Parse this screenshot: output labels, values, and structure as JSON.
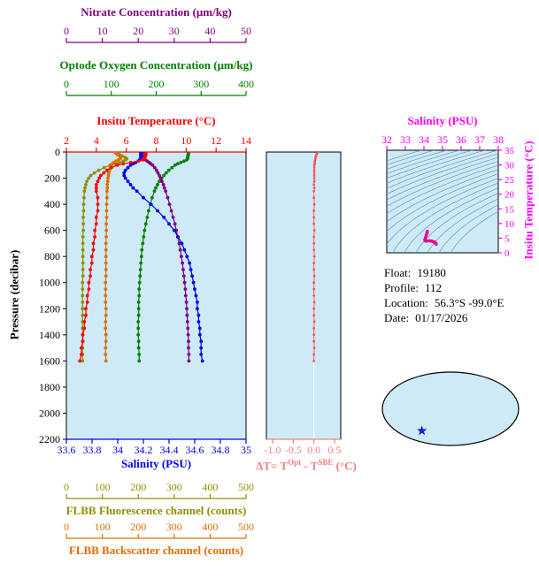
{
  "colors": {
    "plot_bg": "#CDEAF6"
  },
  "axes": {
    "nitrate": {
      "title": "Nitrate Concentration (μm/kg)",
      "color": "#800080",
      "lim": [
        0,
        50
      ],
      "ticks": [
        0,
        10,
        20,
        30,
        40,
        50
      ],
      "tick_labels": [
        "0",
        "10",
        "20",
        "30",
        "40",
        "50"
      ]
    },
    "oxygen": {
      "title": "Optode Oxygen Concentration (μm/kg)",
      "color": "#008000",
      "lim": [
        0,
        400
      ],
      "ticks": [
        0,
        100,
        200,
        300,
        400
      ],
      "tick_labels": [
        "0",
        "100",
        "200",
        "300",
        "400"
      ]
    },
    "temperature": {
      "title": "Insitu Temperature (°C)",
      "color": "#FF0000",
      "lim": [
        2,
        14
      ],
      "ticks": [
        2,
        4,
        6,
        8,
        10,
        12,
        14
      ],
      "tick_labels": [
        "2",
        "4",
        "6",
        "8",
        "10",
        "12",
        "14"
      ]
    },
    "pressure": {
      "title": "Pressure (decibar)",
      "color": "#000000",
      "lim": [
        0,
        2200
      ],
      "ticks": [
        0,
        200,
        400,
        600,
        800,
        1000,
        1200,
        1400,
        1600,
        1800,
        2000,
        2200
      ],
      "tick_labels": [
        "0",
        "200",
        "400",
        "600",
        "800",
        "1000",
        "1200",
        "1400",
        "1600",
        "1800",
        "2000",
        "2200"
      ]
    },
    "salinity": {
      "title": "Salinity (PSU)",
      "color": "#0000EE",
      "lim": [
        33.6,
        35.0
      ],
      "ticks": [
        33.6,
        33.8,
        34,
        34.2,
        34.4,
        34.6,
        34.8,
        35
      ],
      "tick_labels": [
        "33.6",
        "33.8",
        "34",
        "34.2",
        "34.4",
        "34.6",
        "34.8",
        "35"
      ]
    },
    "fluorescence": {
      "title": "FLBB Fluorescence channel (counts)",
      "color": "#8F8F00",
      "lim": [
        0,
        500
      ],
      "ticks": [
        0,
        100,
        200,
        300,
        400,
        500
      ],
      "tick_labels": [
        "0",
        "100",
        "200",
        "300",
        "400",
        "500"
      ]
    },
    "backscatter": {
      "title": "FLBB Backscatter channel (counts)",
      "color": "#E06D00",
      "lim": [
        0,
        500
      ],
      "ticks": [
        0,
        100,
        200,
        300,
        400,
        500
      ],
      "tick_labels": [
        "0",
        "100",
        "200",
        "300",
        "400",
        "500"
      ]
    },
    "delta_t": {
      "t1": "ΔT= T",
      "sup1": "Opt",
      "t2": " - T",
      "sup2": "SBE",
      "t3": " (°C)",
      "color": "#F08080",
      "curve_color": "#FF5050",
      "lim": [
        -1.15,
        0.65
      ],
      "ticks": [
        -1,
        -0.5,
        0,
        0.5
      ],
      "tick_labels": [
        "-1.0",
        "-0.5",
        "0.0",
        "0.5"
      ]
    }
  },
  "ts_diagram": {
    "title": "Salinity (PSU)",
    "right_title": "Insitu Temperature (°C)",
    "color": "#FF00FF",
    "curve_color": "#E8008C",
    "contour_color": "#6E93B5",
    "s_lim": [
      32,
      38
    ],
    "s_ticks": [
      32,
      33,
      34,
      35,
      36,
      37,
      38
    ],
    "s_tick_labels": [
      "32",
      "33",
      "34",
      "35",
      "36",
      "37",
      "38"
    ],
    "t_lim": [
      0,
      35
    ],
    "t_ticks": [
      0,
      5,
      10,
      15,
      20,
      25,
      30,
      35
    ],
    "t_tick_labels": [
      "0",
      "5",
      "10",
      "15",
      "20",
      "25",
      "30",
      "35"
    ],
    "sigma_min": 19,
    "sigma_max": 28.5,
    "sigma_step": 0.5
  },
  "info": {
    "rows": [
      {
        "label": "Float:",
        "value": "19180"
      },
      {
        "label": "Profile:",
        "value": "112"
      },
      {
        "label": "Location:",
        "value": "56.3°S -99.0°E"
      },
      {
        "label": "Date:",
        "value": "01/17/2026"
      }
    ]
  },
  "map": {
    "ocean": "#CDEAF6",
    "land": "#F4B6C2",
    "coast": "#555555",
    "outline": "#000000",
    "star_color": "#2020CC",
    "star_fx": 0.29,
    "star_fy": 0.8
  },
  "chart_data": {
    "type": "line",
    "description": "Ocean float profile plots: property vs pressure, plus Opt-SBE temperature difference panel and T-S diagram",
    "ylabel": "Pressure (decibar)",
    "ylim": [
      0,
      2200
    ],
    "pressure_dbar": [
      0,
      10,
      20,
      30,
      40,
      50,
      60,
      70,
      80,
      90,
      100,
      120,
      140,
      160,
      180,
      200,
      225,
      250,
      275,
      300,
      350,
      400,
      450,
      500,
      550,
      600,
      650,
      700,
      750,
      800,
      850,
      900,
      950,
      1000,
      1050,
      1100,
      1150,
      1200,
      1250,
      1300,
      1350,
      1400,
      1450,
      1500,
      1550,
      1600
    ],
    "series": [
      {
        "name": "Insitu Temperature",
        "units": "°C",
        "axis": "temperature",
        "color": "#FF0000",
        "values": [
          7.3,
          7.3,
          7.3,
          7.3,
          7.2,
          7.2,
          7.1,
          6.8,
          6.3,
          5.8,
          5.4,
          5.0,
          4.7,
          4.5,
          4.3,
          4.2,
          4.1,
          4.0,
          4.0,
          4.0,
          4.1,
          4.1,
          4.1,
          4.0,
          4.0,
          3.9,
          3.9,
          3.8,
          3.8,
          3.7,
          3.7,
          3.6,
          3.6,
          3.5,
          3.5,
          3.4,
          3.4,
          3.3,
          3.3,
          3.2,
          3.2,
          3.1,
          3.1,
          3.0,
          3.0,
          2.9
        ]
      },
      {
        "name": "Salinity",
        "units": "PSU",
        "axis": "salinity",
        "color": "#0000EE",
        "values": [
          34.18,
          34.18,
          34.18,
          34.18,
          34.18,
          34.18,
          34.17,
          34.16,
          34.14,
          34.12,
          34.1,
          34.08,
          34.06,
          34.05,
          34.05,
          34.06,
          34.08,
          34.1,
          34.12,
          34.15,
          34.2,
          34.26,
          34.31,
          34.36,
          34.4,
          34.44,
          34.47,
          34.5,
          34.52,
          34.54,
          34.56,
          34.57,
          34.58,
          34.59,
          34.6,
          34.61,
          34.62,
          34.62,
          34.63,
          34.63,
          34.64,
          34.64,
          34.65,
          34.65,
          34.65,
          34.66
        ]
      },
      {
        "name": "Optode Oxygen Concentration",
        "units": "μm/kg",
        "axis": "oxygen",
        "color": "#008000",
        "values": [
          272,
          272,
          271,
          271,
          270,
          270,
          268,
          262,
          255,
          248,
          242,
          235,
          228,
          222,
          217,
          212,
          207,
          203,
          199,
          196,
          191,
          187,
          183,
          180,
          177,
          174,
          172,
          170,
          168,
          167,
          166,
          165,
          164,
          163,
          162,
          162,
          161,
          161,
          161,
          160,
          160,
          160,
          161,
          161,
          162,
          162
        ]
      },
      {
        "name": "Nitrate Concentration",
        "units": "μm/kg",
        "axis": "nitrate",
        "color": "#800080",
        "values": [
          21.5,
          21.5,
          21.6,
          21.6,
          21.7,
          21.8,
          22.0,
          22.5,
          23.0,
          23.5,
          24.0,
          24.6,
          25.1,
          25.5,
          25.9,
          26.2,
          26.6,
          27.0,
          27.3,
          27.6,
          28.2,
          28.7,
          29.2,
          29.7,
          30.2,
          30.6,
          31.0,
          31.4,
          31.7,
          32.0,
          32.3,
          32.5,
          32.7,
          32.9,
          33.1,
          33.2,
          33.4,
          33.5,
          33.6,
          33.7,
          33.8,
          33.9,
          34.0,
          34.0,
          34.1,
          34.1
        ]
      },
      {
        "name": "FLBB Fluorescence channel",
        "units": "counts",
        "axis": "fluorescence",
        "color": "#8F8F00",
        "values": [
          138,
          142,
          148,
          155,
          163,
          168,
          165,
          158,
          148,
          135,
          122,
          105,
          90,
          78,
          68,
          62,
          57,
          54,
          52,
          50,
          49,
          48,
          48,
          47,
          47,
          47,
          46,
          46,
          46,
          46,
          46,
          46,
          46,
          45,
          45,
          45,
          45,
          45,
          45,
          45,
          45,
          45,
          45,
          45,
          45,
          45
        ]
      },
      {
        "name": "FLBB Backscatter channel",
        "units": "counts",
        "axis": "backscatter",
        "color": "#E06D00",
        "values": [
          135,
          138,
          142,
          148,
          152,
          150,
          145,
          138,
          132,
          128,
          125,
          122,
          120,
          118,
          117,
          116,
          115,
          114,
          114,
          113,
          113,
          112,
          112,
          112,
          111,
          111,
          111,
          110,
          110,
          110,
          110,
          110,
          110,
          109,
          109,
          109,
          109,
          110,
          110,
          109,
          109,
          110,
          110,
          109,
          109,
          110
        ]
      },
      {
        "name": "ΔT= TOpt - TSBE",
        "units": "°C",
        "axis": "delta_t",
        "color": "#FF5050",
        "values": [
          0.1,
          0.08,
          0.06,
          0.05,
          0.04,
          0.03,
          0.03,
          0.02,
          0.02,
          0.02,
          0.01,
          0.01,
          0.01,
          0.01,
          0.01,
          0.01,
          0.01,
          0.0,
          0.01,
          0.0,
          0.0,
          0.01,
          0.0,
          0.0,
          0.0,
          0.01,
          0.0,
          0.0,
          0.0,
          0.01,
          0.0,
          0.0,
          0.01,
          0.0,
          0.0,
          0.0,
          0.01,
          0.0,
          0.0,
          0.01,
          0.0,
          0.0,
          0.0,
          0.01,
          0.0,
          0.0
        ]
      }
    ]
  }
}
